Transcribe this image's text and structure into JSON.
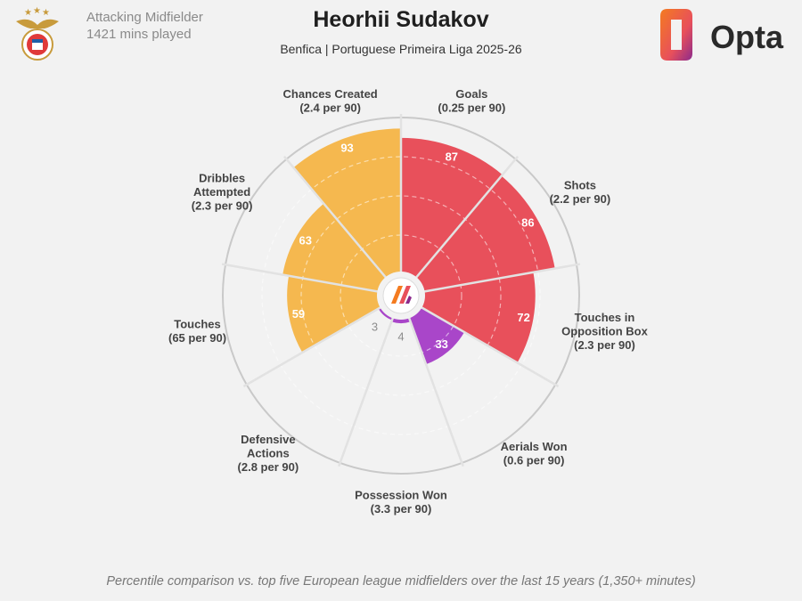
{
  "header": {
    "position": "Attacking Midfielder",
    "minutes": "1421 mins played",
    "player_name": "Heorhii Sudakov",
    "subtitle": "Benfica | Portuguese Primeira Liga 2025-26",
    "brand": "Opta"
  },
  "footnote": "Percentile comparison vs. top five European league midfielders over the last 15 years (1,350+ minutes)",
  "colors": {
    "attacking": "#e8505b",
    "possession": "#f5b84f",
    "defending": "#a946c9",
    "background": "#f2f2f2",
    "opta_orange": "#f47b20",
    "opta_purple": "#8c2a8c"
  },
  "chart_data": {
    "type": "radar",
    "scale": [
      0,
      100
    ],
    "grid": true,
    "categories": [
      {
        "label": [
          "Goals",
          "(0.25 per 90)"
        ],
        "value": 87,
        "group": "attacking"
      },
      {
        "label": [
          "Shots",
          "(2.2 per 90)"
        ],
        "value": 86,
        "group": "attacking"
      },
      {
        "label": [
          "Touches in",
          "Opposition Box",
          "(2.3 per 90)"
        ],
        "value": 72,
        "group": "attacking"
      },
      {
        "label": [
          "Aerials Won",
          "(0.6 per 90)"
        ],
        "value": 33,
        "group": "defending"
      },
      {
        "label": [
          "Possession Won",
          "(3.3 per 90)"
        ],
        "value": 4,
        "group": "defending"
      },
      {
        "label": [
          "Defensive",
          "Actions",
          "(2.8 per 90)"
        ],
        "value": 3,
        "group": "defending"
      },
      {
        "label": [
          "Touches",
          "(65 per 90)"
        ],
        "value": 59,
        "group": "possession"
      },
      {
        "label": [
          "Dribbles",
          "Attempted",
          "(2.3 per 90)"
        ],
        "value": 63,
        "group": "possession"
      },
      {
        "label": [
          "Chances Created",
          "(2.4 per 90)"
        ],
        "value": 93,
        "group": "possession"
      }
    ]
  }
}
